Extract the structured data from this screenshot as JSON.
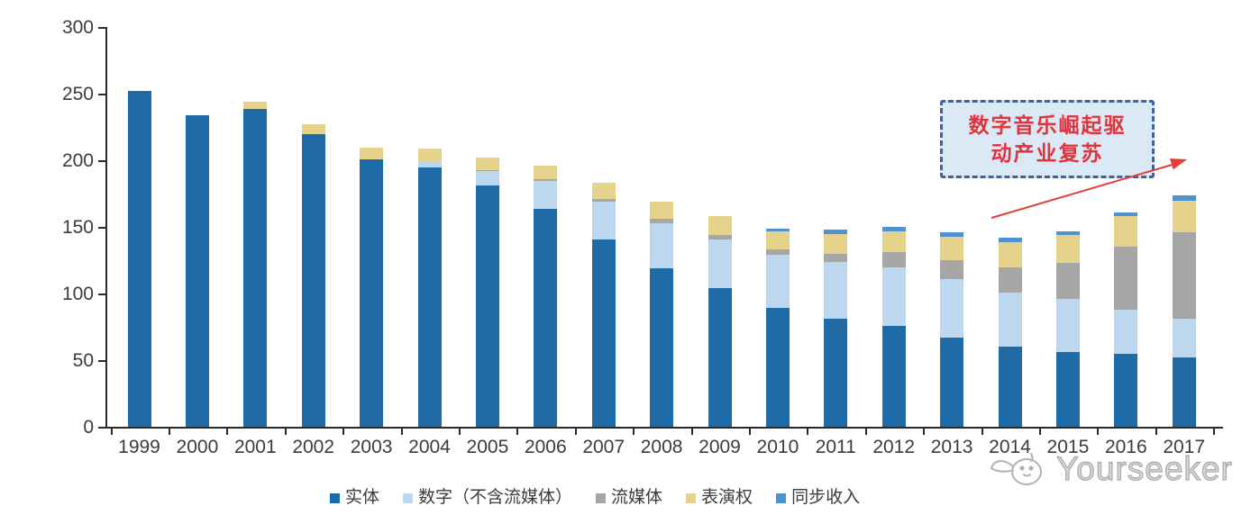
{
  "chart_data": {
    "type": "bar",
    "stacked": true,
    "title": "",
    "xlabel": "",
    "ylabel": "",
    "ylim": [
      0,
      300
    ],
    "yticks": [
      0,
      50,
      100,
      150,
      200,
      250,
      300
    ],
    "grid": false,
    "legend_position": "bottom",
    "categories": [
      "1999",
      "2000",
      "2001",
      "2002",
      "2003",
      "2004",
      "2005",
      "2006",
      "2007",
      "2008",
      "2009",
      "2010",
      "2011",
      "2012",
      "2013",
      "2014",
      "2015",
      "2016",
      "2017"
    ],
    "series": [
      {
        "key": "physical",
        "name": "实体",
        "color": "#1f6ba8",
        "values": [
          252,
          234,
          239,
          220,
          201,
          195,
          181,
          164,
          141,
          119,
          104,
          89,
          81,
          76,
          67,
          60,
          56,
          55,
          52
        ]
      },
      {
        "key": "digital",
        "name": "数字（不含流媒体）",
        "color": "#bdd7ee",
        "values": [
          0,
          0,
          0,
          0,
          0,
          4,
          11,
          21,
          28,
          34,
          37,
          40,
          43,
          44,
          44,
          41,
          40,
          33,
          29
        ]
      },
      {
        "key": "streaming",
        "name": "流媒体",
        "color": "#a6a6a6",
        "values": [
          0,
          0,
          0,
          0,
          0,
          0,
          1,
          1,
          2,
          3,
          3,
          4,
          6,
          11,
          14,
          19,
          27,
          47,
          65
        ]
      },
      {
        "key": "performance",
        "name": "表演权",
        "color": "#e5d28b",
        "values": [
          0,
          0,
          5,
          7,
          9,
          10,
          9,
          10,
          12,
          13,
          14,
          14,
          15,
          16,
          18,
          19,
          21,
          23,
          24
        ]
      },
      {
        "key": "sync",
        "name": "同步收入",
        "color": "#4e93d0",
        "values": [
          0,
          0,
          0,
          0,
          0,
          0,
          0,
          0,
          0,
          0,
          0,
          2,
          3,
          3,
          3,
          3,
          3,
          3,
          4
        ]
      }
    ]
  },
  "annotation": {
    "line1": "数字音乐崛起驱",
    "line2": "动产业复苏",
    "text_color": "#e0343c",
    "box_fill": "#dbe8f6",
    "box_border": "#3e639e",
    "arrow_color": "#e2413b"
  },
  "watermark": {
    "text": "Yourseeker"
  }
}
